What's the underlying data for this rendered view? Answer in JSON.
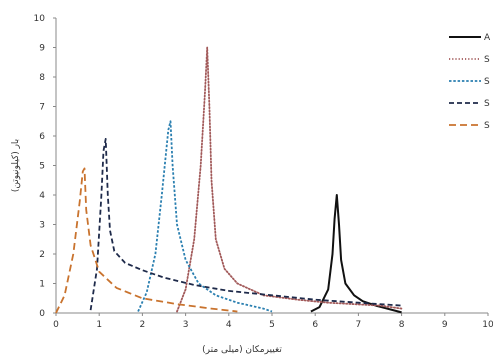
{
  "chart_data": {
    "type": "line",
    "title": "",
    "xlabel": "تغییرمکان (میلی متر)",
    "ylabel": "بار (کیلونیوتن)",
    "xlim": [
      0,
      10
    ],
    "ylim": [
      0,
      10
    ],
    "xticks": [
      "0",
      "1",
      "2",
      "3",
      "4",
      "5",
      "6",
      "7",
      "8",
      "9",
      "10"
    ],
    "yticks": [
      "0",
      "1",
      "2",
      "3",
      "4",
      "5",
      "6",
      "7",
      "8",
      "9",
      "10"
    ],
    "grid": false,
    "legend_position": "top-right",
    "series": [
      {
        "name": "A",
        "color": "#111111",
        "dash": "solid",
        "x": [
          5.9,
          6.1,
          6.3,
          6.4,
          6.45,
          6.5,
          6.55,
          6.6,
          6.7,
          6.9,
          7.1,
          7.4,
          7.8,
          8.0
        ],
        "y": [
          0.05,
          0.2,
          0.8,
          2.0,
          3.2,
          4.0,
          3.0,
          1.8,
          1.0,
          0.6,
          0.4,
          0.25,
          0.1,
          0.02
        ]
      },
      {
        "name": "S",
        "color": "#a25a5a",
        "dash": "dotted",
        "x": [
          2.8,
          3.0,
          3.2,
          3.35,
          3.45,
          3.5,
          3.55,
          3.6,
          3.7,
          3.9,
          4.2,
          4.8,
          5.6,
          6.3,
          7.5,
          8.0
        ],
        "y": [
          0.05,
          0.8,
          2.5,
          5.0,
          7.5,
          9.0,
          7.0,
          4.5,
          2.5,
          1.5,
          1.0,
          0.6,
          0.45,
          0.35,
          0.25,
          0.15
        ]
      },
      {
        "name": "S",
        "color": "#2a7fb0",
        "dash": "short-dash",
        "x": [
          1.9,
          2.1,
          2.3,
          2.45,
          2.6,
          2.65,
          2.7,
          2.8,
          3.0,
          3.3,
          3.7,
          4.2,
          4.8,
          5.0
        ],
        "y": [
          0.05,
          0.7,
          2.0,
          4.0,
          6.2,
          6.5,
          5.0,
          3.0,
          1.8,
          1.0,
          0.6,
          0.35,
          0.15,
          0.05
        ]
      },
      {
        "name": "S",
        "color": "#1e2a4a",
        "dash": "dash",
        "x": [
          0.8,
          0.95,
          1.05,
          1.1,
          1.15,
          1.2,
          1.25,
          1.35,
          1.6,
          2.0,
          2.5,
          3.2,
          4.0,
          5.0,
          6.0,
          7.0,
          8.0
        ],
        "y": [
          0.1,
          1.5,
          4.0,
          5.5,
          5.9,
          4.0,
          2.8,
          2.1,
          1.7,
          1.45,
          1.2,
          0.95,
          0.75,
          0.6,
          0.45,
          0.35,
          0.25
        ]
      },
      {
        "name": "S",
        "color": "#c9732e",
        "dash": "long-dash",
        "x": [
          0.0,
          0.2,
          0.4,
          0.55,
          0.62,
          0.66,
          0.7,
          0.8,
          1.0,
          1.4,
          2.0,
          2.8,
          3.6,
          4.2
        ],
        "y": [
          0.0,
          0.6,
          2.0,
          3.8,
          4.8,
          4.9,
          3.5,
          2.3,
          1.4,
          0.85,
          0.5,
          0.3,
          0.15,
          0.05
        ]
      }
    ]
  }
}
